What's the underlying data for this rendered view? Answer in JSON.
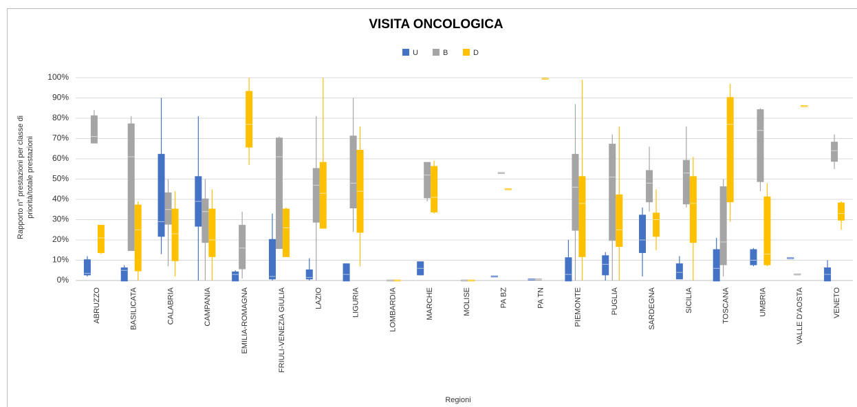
{
  "chart_data": {
    "type": "box",
    "title": "VISITA ONCOLOGICA",
    "x_label": "Regioni",
    "y_label": [
      "Rapporto n° prestazioni per classe di",
      "priorità/totale prestazioni"
    ],
    "categories": [
      "ABRUZZO",
      "BASILICATA",
      "CALABRIA",
      "CAMPANIA",
      "EMILIA-ROMAGNA",
      "FRIULI-VENEZIA GIULIA",
      "LAZIO",
      "LIGURIA",
      "LOMBARDIA",
      "MARCHE",
      "MOLISE",
      "PA BZ",
      "PA TN",
      "PIEMONTE",
      "PUGLIA",
      "SARDEGNA",
      "SICILIA",
      "TOSCANA",
      "UMBRIA",
      "VALLE D'AOSTA",
      "VENETO"
    ],
    "ylim": [
      0,
      100
    ],
    "yticks": [
      {
        "value": 0,
        "label": "0%"
      },
      {
        "value": 10,
        "label": "10%"
      },
      {
        "value": 20,
        "label": "20%"
      },
      {
        "value": 30,
        "label": "30%"
      },
      {
        "value": 40,
        "label": "40%"
      },
      {
        "value": 50,
        "label": "50%"
      },
      {
        "value": 60,
        "label": "60%"
      },
      {
        "value": 70,
        "label": "70%"
      },
      {
        "value": 80,
        "label": "80%"
      },
      {
        "value": 90,
        "label": "90%"
      },
      {
        "value": 100,
        "label": "100%"
      }
    ],
    "grid": true,
    "legend": "top",
    "series": [
      {
        "name": "U",
        "color": "#4472c4",
        "values": [
          {
            "min": 2,
            "q1": 3,
            "median": 3.5,
            "q3": 10,
            "max": 12
          },
          {
            "min": 0,
            "q1": 0,
            "median": 5,
            "q3": 6,
            "max": 7.5
          },
          {
            "min": 13,
            "q1": 22,
            "median": 29,
            "q3": 62,
            "max": 90
          },
          {
            "min": 0,
            "q1": 27,
            "median": 39,
            "q3": 51,
            "max": 81
          },
          {
            "min": 0,
            "q1": 0,
            "median": 3,
            "q3": 4,
            "max": 5
          },
          {
            "min": 0,
            "q1": 1,
            "median": 2,
            "q3": 20,
            "max": 33
          },
          {
            "min": 0,
            "q1": 1,
            "median": 1.5,
            "q3": 5,
            "max": 11
          },
          {
            "min": 0,
            "q1": 0,
            "median": 3,
            "q3": 8,
            "max": 8
          },
          null,
          {
            "min": 2.5,
            "q1": 3,
            "median": 6,
            "q3": 9,
            "max": 9
          },
          null,
          {
            "min": 2,
            "q1": 2,
            "median": 2,
            "q3": 2,
            "max": 2
          },
          {
            "min": 0.5,
            "q1": 0.5,
            "median": 0.5,
            "q3": 0.5,
            "max": 0.5
          },
          {
            "min": 0,
            "q1": 0,
            "median": 3,
            "q3": 11,
            "max": 20
          },
          {
            "min": 0,
            "q1": 3,
            "median": 8,
            "q3": 12,
            "max": 14
          },
          {
            "min": 2,
            "q1": 14,
            "median": 20,
            "q3": 32,
            "max": 36
          },
          {
            "min": 1,
            "q1": 1,
            "median": 4,
            "q3": 8,
            "max": 12
          },
          {
            "min": 0,
            "q1": 0,
            "median": 6,
            "q3": 15,
            "max": 21
          },
          {
            "min": 7,
            "q1": 8,
            "median": 10,
            "q3": 15,
            "max": 16
          },
          {
            "min": 11,
            "q1": 11,
            "median": 11,
            "q3": 11,
            "max": 11
          },
          {
            "min": 0,
            "q1": 0,
            "median": 3,
            "q3": 6,
            "max": 10
          }
        ]
      },
      {
        "name": "B",
        "color": "#a5a5a5",
        "values": [
          {
            "min": 68,
            "q1": 68,
            "median": 71,
            "q3": 81,
            "max": 84
          },
          {
            "min": 15,
            "q1": 15,
            "median": 61,
            "q3": 77,
            "max": 81
          },
          {
            "min": 7,
            "q1": 28,
            "median": 35,
            "q3": 43,
            "max": 50
          },
          {
            "min": 0,
            "q1": 19,
            "median": 34,
            "q3": 40,
            "max": 50
          },
          {
            "min": 1,
            "q1": 6,
            "median": 16,
            "q3": 27,
            "max": 34
          },
          {
            "min": 16,
            "q1": 16,
            "median": 61,
            "q3": 70,
            "max": 71
          },
          {
            "min": 0,
            "q1": 29,
            "median": 47,
            "q3": 55,
            "max": 81
          },
          {
            "min": 24,
            "q1": 36,
            "median": 48,
            "q3": 71,
            "max": 90
          },
          {
            "min": 0,
            "q1": 0,
            "median": 0,
            "q3": 0,
            "max": 0
          },
          {
            "min": 39,
            "q1": 41,
            "median": 52,
            "q3": 58,
            "max": 58
          },
          {
            "min": 0,
            "q1": 0,
            "median": 0,
            "q3": 0,
            "max": 0
          },
          {
            "min": 53,
            "q1": 53,
            "median": 53,
            "q3": 53,
            "max": 53
          },
          {
            "min": 0.5,
            "q1": 0.5,
            "median": 0.5,
            "q3": 0.5,
            "max": 0.5
          },
          {
            "min": 0,
            "q1": 25,
            "median": 46,
            "q3": 62,
            "max": 87
          },
          {
            "min": 0,
            "q1": 20,
            "median": 51,
            "q3": 67,
            "max": 72
          },
          {
            "min": 34,
            "q1": 39,
            "median": 48,
            "q3": 54,
            "max": 66
          },
          {
            "min": 36,
            "q1": 38,
            "median": 53,
            "q3": 59,
            "max": 76
          },
          {
            "min": 2,
            "q1": 8,
            "median": 19,
            "q3": 46,
            "max": 50
          },
          {
            "min": 44,
            "q1": 49,
            "median": 74,
            "q3": 84,
            "max": 85
          },
          {
            "min": 3,
            "q1": 3,
            "median": 3,
            "q3": 3,
            "max": 3
          },
          {
            "min": 55,
            "q1": 59,
            "median": 64,
            "q3": 68,
            "max": 72
          }
        ]
      },
      {
        "name": "D",
        "color": "#ffc000",
        "values": [
          {
            "min": 13,
            "q1": 14,
            "median": 21,
            "q3": 27,
            "max": 27
          },
          {
            "min": 0,
            "q1": 5,
            "median": 25,
            "q3": 37,
            "max": 39
          },
          {
            "min": 2,
            "q1": 10,
            "median": 23,
            "q3": 35,
            "max": 44
          },
          {
            "min": 0,
            "q1": 12,
            "median": 20,
            "q3": 35,
            "max": 45
          },
          {
            "min": 57,
            "q1": 66,
            "median": 77,
            "q3": 93,
            "max": 100
          },
          {
            "min": 12,
            "q1": 12,
            "median": 26,
            "q3": 35,
            "max": 36
          },
          {
            "min": 26,
            "q1": 26,
            "median": 43,
            "q3": 58,
            "max": 100
          },
          {
            "min": 7,
            "q1": 24,
            "median": 44,
            "q3": 64,
            "max": 76
          },
          {
            "min": 0,
            "q1": 0,
            "median": 0,
            "q3": 0,
            "max": 0
          },
          {
            "min": 33,
            "q1": 34,
            "median": 41,
            "q3": 56,
            "max": 59
          },
          {
            "min": 0,
            "q1": 0,
            "median": 0,
            "q3": 0,
            "max": 0
          },
          {
            "min": 45,
            "q1": 45,
            "median": 45,
            "q3": 45,
            "max": 45
          },
          {
            "min": 99.5,
            "q1": 99.5,
            "median": 99.5,
            "q3": 99.5,
            "max": 99.5
          },
          {
            "min": 0,
            "q1": 12,
            "median": 38,
            "q3": 51,
            "max": 99
          },
          {
            "min": 0,
            "q1": 17,
            "median": 25,
            "q3": 42,
            "max": 76
          },
          {
            "min": 15,
            "q1": 22,
            "median": 30,
            "q3": 33,
            "max": 45
          },
          {
            "min": 0,
            "q1": 19,
            "median": 38,
            "q3": 51,
            "max": 61
          },
          {
            "min": 29,
            "q1": 39,
            "median": 77,
            "q3": 90,
            "max": 97
          },
          {
            "min": 7,
            "q1": 8,
            "median": 13,
            "q3": 41,
            "max": 48
          },
          {
            "min": 86,
            "q1": 86,
            "median": 86,
            "q3": 86,
            "max": 86
          },
          {
            "min": 25,
            "q1": 30,
            "median": 33,
            "q3": 38,
            "max": 39
          }
        ]
      }
    ]
  }
}
